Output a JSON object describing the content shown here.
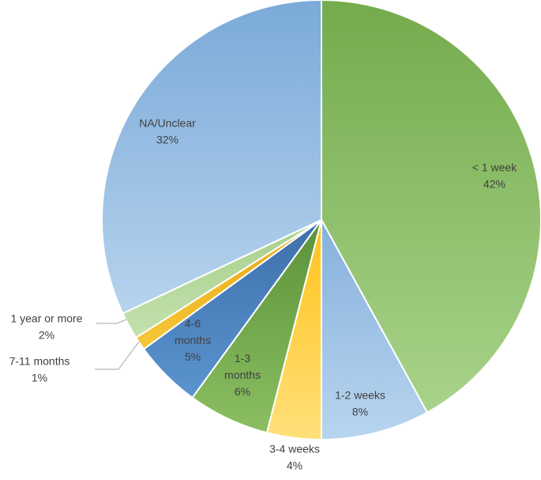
{
  "chart_data": {
    "type": "pie",
    "title": "",
    "slices": [
      {
        "label": "< 1 week",
        "lines": [
          "< 1 week"
        ],
        "value": 42,
        "value_label": "42%",
        "color": "#8cc068",
        "gradient": [
          "#74ab4c",
          "#a9d38b"
        ]
      },
      {
        "label": "1-2 weeks",
        "lines": [
          "1-2 weeks"
        ],
        "value": 8,
        "value_label": "8%",
        "color": "#9dc3e6",
        "gradient": [
          "#86b0dc",
          "#b8d5ef"
        ]
      },
      {
        "label": "3-4 weeks",
        "lines": [
          "3-4 weeks"
        ],
        "value": 4,
        "value_label": "4%",
        "color": "#ffd34a",
        "gradient": [
          "#ffc21a",
          "#ffe07a"
        ]
      },
      {
        "label": "1-3 months",
        "lines": [
          "1-3",
          "months"
        ],
        "value": 6,
        "value_label": "6%",
        "color": "#6fa64a",
        "gradient": [
          "#5a9138",
          "#8cbf62"
        ]
      },
      {
        "label": "4-6 months",
        "lines": [
          "4-6",
          "months"
        ],
        "value": 5,
        "value_label": "5%",
        "color": "#4a82c0",
        "gradient": [
          "#3d6faa",
          "#5b94d0"
        ]
      },
      {
        "label": "7-11 months",
        "lines": [
          "7-11 months"
        ],
        "value": 1,
        "value_label": "1%",
        "color": "#f0b41c",
        "gradient": [
          "#e6a50f",
          "#f7c83a"
        ]
      },
      {
        "label": "1 year or more",
        "lines": [
          "1 year or more"
        ],
        "value": 2,
        "value_label": "2%",
        "color": "#b5d99c",
        "gradient": [
          "#a6cf8a",
          "#c4e1ad"
        ]
      },
      {
        "label": "NA/Unclear",
        "lines": [
          "NA/Unclear"
        ],
        "value": 32,
        "value_label": "32%",
        "color": "#9dc3e6",
        "gradient": [
          "#7aaad8",
          "#b7d3ee"
        ]
      }
    ],
    "start_angle_deg": 0,
    "direction": "clockwise",
    "legend": "none",
    "label_placement": "inside, with leader lines for 7-11 months and 1 year or more"
  }
}
